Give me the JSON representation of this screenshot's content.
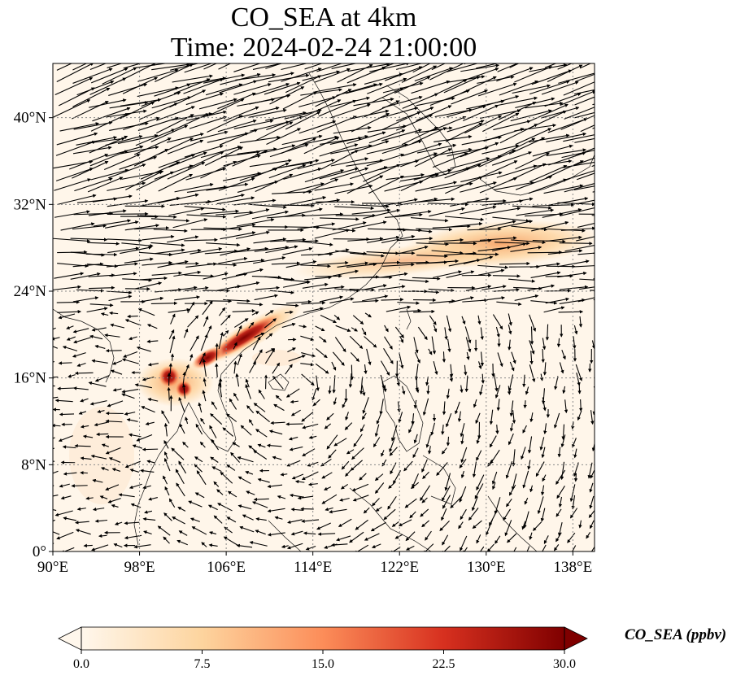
{
  "title": {
    "line1": "CO_SEA at 4km",
    "line2": "Time: 2024-02-24 21:00:00"
  },
  "map": {
    "lon_ticks": [
      "90°E",
      "98°E",
      "106°E",
      "114°E",
      "122°E",
      "130°E",
      "138°E"
    ],
    "lat_ticks": [
      "0°",
      "8°N",
      "16°N",
      "24°N",
      "32°N",
      "40°N"
    ],
    "extent": {
      "lon": [
        90,
        140
      ],
      "lat": [
        0,
        45
      ]
    },
    "gridlines": true,
    "wind_vectors": true
  },
  "colorbar": {
    "label": "CO_SEA (ppbv)",
    "ticks": [
      "0.0",
      "7.5",
      "15.0",
      "22.5",
      "30.0"
    ],
    "range": [
      0,
      30
    ],
    "colormap": "OrRd",
    "colors": [
      "#fff7ec",
      "#fdd49e",
      "#fc8d59",
      "#d7301f",
      "#7f0000"
    ]
  },
  "plumes": [
    {
      "lon": 101.5,
      "lat": 16.3,
      "value": 30
    },
    {
      "lon": 102.7,
      "lat": 15.0,
      "value": 28
    },
    {
      "lon": 106.0,
      "lat": 19.0,
      "value": 22
    },
    {
      "lon": 109.5,
      "lat": 20.8,
      "value": 26
    },
    {
      "lon": 126.0,
      "lat": 29.2,
      "value": 8
    },
    {
      "lon": 136.0,
      "lat": 30.0,
      "value": 10
    }
  ]
}
